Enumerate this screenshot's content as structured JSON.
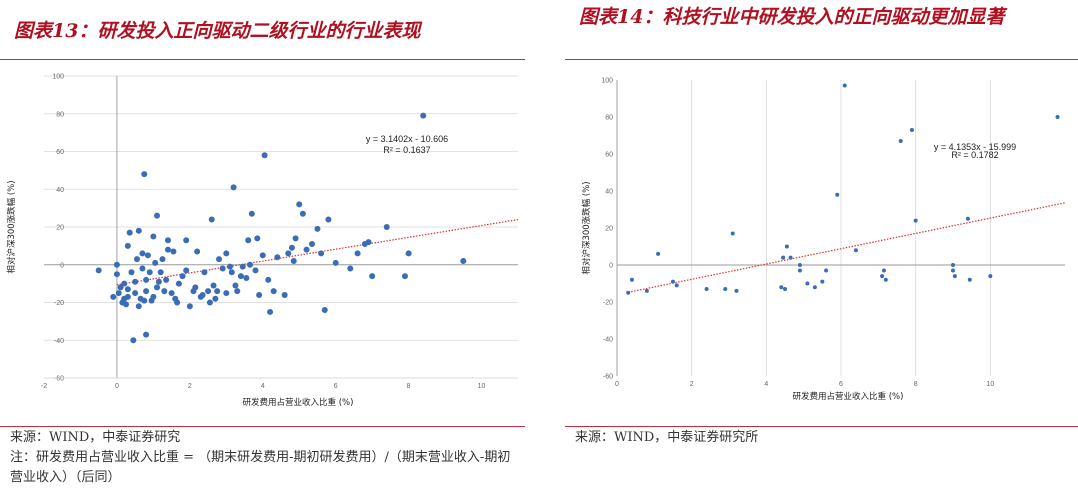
{
  "left": {
    "title": "图表13：研发投入正向驱动二级行业的行业表现",
    "source": "来源：WIND，中泰证券研究",
    "note": "注：研发费用占营业收入比重 = （期末研发费用-期初研发费用）/（期末营业收入-期初营业收入）（后同）"
  },
  "right": {
    "title": "图表14：科技行业中研发投入的正向驱动更加显著",
    "source": "来源：WIND，中泰证券研究所"
  },
  "chart_data": [
    {
      "type": "scatter",
      "xlabel": "研发费用占营业收入比重 (%)",
      "ylabel": "相对沪深300涨跌幅 (%)",
      "xlim": [
        -2,
        11
      ],
      "ylim": [
        -60,
        100
      ],
      "x_ticks": [
        "-2",
        "0",
        "2",
        "4",
        "6",
        "8",
        "10"
      ],
      "y_ticks": [
        "-60",
        "-40",
        "-20",
        "0",
        "20",
        "40",
        "60",
        "80",
        "100"
      ],
      "equation": "y = 3.1402x - 10.606",
      "r2": "R² = 0.1637",
      "trend": {
        "slope": 3.1402,
        "intercept": -10.606
      },
      "color": "#3a6db5",
      "trend_color": "#e03030",
      "points": [
        [
          -0.5,
          -3
        ],
        [
          -0.1,
          -17
        ],
        [
          0.0,
          -5
        ],
        [
          0.0,
          0
        ],
        [
          0.05,
          -15
        ],
        [
          0.1,
          -12
        ],
        [
          0.15,
          -20
        ],
        [
          0.2,
          -18
        ],
        [
          0.2,
          -10
        ],
        [
          0.25,
          -21
        ],
        [
          0.3,
          -13
        ],
        [
          0.3,
          -17
        ],
        [
          0.3,
          10
        ],
        [
          0.35,
          17
        ],
        [
          0.4,
          -4
        ],
        [
          0.45,
          -40
        ],
        [
          0.5,
          -9
        ],
        [
          0.5,
          -15
        ],
        [
          0.55,
          3
        ],
        [
          0.6,
          -22
        ],
        [
          0.6,
          18
        ],
        [
          0.65,
          -18
        ],
        [
          0.7,
          -2
        ],
        [
          0.7,
          6
        ],
        [
          0.75,
          -19
        ],
        [
          0.75,
          48
        ],
        [
          0.8,
          -37
        ],
        [
          0.8,
          -14
        ],
        [
          0.8,
          -8
        ],
        [
          0.85,
          5
        ],
        [
          0.9,
          -4
        ],
        [
          0.95,
          -19
        ],
        [
          1.0,
          -17
        ],
        [
          1.0,
          15
        ],
        [
          1.05,
          1
        ],
        [
          1.1,
          -12
        ],
        [
          1.1,
          26
        ],
        [
          1.15,
          -9
        ],
        [
          1.2,
          -4
        ],
        [
          1.25,
          3
        ],
        [
          1.3,
          -14
        ],
        [
          1.35,
          -8
        ],
        [
          1.4,
          8
        ],
        [
          1.4,
          13
        ],
        [
          1.5,
          -15
        ],
        [
          1.55,
          7
        ],
        [
          1.6,
          -18
        ],
        [
          1.65,
          -20
        ],
        [
          1.7,
          -10
        ],
        [
          1.8,
          -6
        ],
        [
          1.9,
          -3
        ],
        [
          1.9,
          13
        ],
        [
          2.0,
          -22
        ],
        [
          2.1,
          -14
        ],
        [
          2.15,
          -12
        ],
        [
          2.2,
          7
        ],
        [
          2.3,
          -17
        ],
        [
          2.35,
          -16
        ],
        [
          2.4,
          -4
        ],
        [
          2.5,
          -14
        ],
        [
          2.55,
          -20
        ],
        [
          2.6,
          24
        ],
        [
          2.65,
          -11
        ],
        [
          2.7,
          -18
        ],
        [
          2.75,
          -14
        ],
        [
          2.8,
          3
        ],
        [
          2.9,
          -2
        ],
        [
          3.0,
          -15
        ],
        [
          3.0,
          6
        ],
        [
          3.1,
          -1
        ],
        [
          3.15,
          -4
        ],
        [
          3.2,
          41
        ],
        [
          3.25,
          -11
        ],
        [
          3.3,
          -14
        ],
        [
          3.4,
          -6
        ],
        [
          3.45,
          -1
        ],
        [
          3.55,
          -7
        ],
        [
          3.6,
          13
        ],
        [
          3.65,
          0
        ],
        [
          3.7,
          27
        ],
        [
          3.8,
          -3
        ],
        [
          3.85,
          14
        ],
        [
          3.9,
          -16
        ],
        [
          4.0,
          5
        ],
        [
          4.05,
          58
        ],
        [
          4.15,
          -8
        ],
        [
          4.2,
          -25
        ],
        [
          4.3,
          -14
        ],
        [
          4.4,
          4
        ],
        [
          4.6,
          -16
        ],
        [
          4.7,
          6
        ],
        [
          4.8,
          9
        ],
        [
          4.85,
          2
        ],
        [
          4.9,
          14
        ],
        [
          5.0,
          32
        ],
        [
          5.1,
          27
        ],
        [
          5.2,
          8
        ],
        [
          5.35,
          11
        ],
        [
          5.5,
          19
        ],
        [
          5.6,
          6
        ],
        [
          5.7,
          -24
        ],
        [
          5.8,
          24
        ],
        [
          6.0,
          1
        ],
        [
          6.4,
          -2
        ],
        [
          6.6,
          6
        ],
        [
          6.8,
          11
        ],
        [
          6.9,
          12
        ],
        [
          7.0,
          -6
        ],
        [
          7.4,
          20
        ],
        [
          7.9,
          -6
        ],
        [
          8.0,
          6
        ],
        [
          8.4,
          79
        ],
        [
          9.5,
          2
        ]
      ]
    },
    {
      "type": "scatter",
      "xlabel": "研发费用占营业收入比重 (%)",
      "ylabel": "相对沪深300涨跌幅 (%)",
      "xlim": [
        0,
        12
      ],
      "ylim": [
        -60,
        100
      ],
      "x_ticks": [
        "0",
        "2",
        "4",
        "6",
        "8",
        "10"
      ],
      "y_ticks": [
        "-60",
        "-40",
        "-20",
        "0",
        "20",
        "40",
        "60",
        "80",
        "100"
      ],
      "equation": "y = 4.1353x - 15.999",
      "r2": "R² = 0.1782",
      "trend": {
        "slope": 4.1353,
        "intercept": -15.999
      },
      "color": "#3a6db5",
      "trend_color": "#e03030",
      "points": [
        [
          0.3,
          -15
        ],
        [
          0.4,
          -8
        ],
        [
          0.8,
          -14
        ],
        [
          1.1,
          6
        ],
        [
          1.5,
          -9
        ],
        [
          1.6,
          -11
        ],
        [
          2.4,
          -13
        ],
        [
          2.9,
          -13
        ],
        [
          3.1,
          17
        ],
        [
          3.2,
          -14
        ],
        [
          4.4,
          -12
        ],
        [
          4.45,
          4
        ],
        [
          4.5,
          -13
        ],
        [
          4.55,
          10
        ],
        [
          4.65,
          4
        ],
        [
          4.9,
          0
        ],
        [
          4.9,
          -3
        ],
        [
          5.1,
          -10
        ],
        [
          5.3,
          -12
        ],
        [
          5.5,
          -9
        ],
        [
          5.6,
          -3
        ],
        [
          5.9,
          38
        ],
        [
          6.1,
          97
        ],
        [
          6.4,
          8
        ],
        [
          7.1,
          -6
        ],
        [
          7.15,
          -3
        ],
        [
          7.2,
          -8
        ],
        [
          7.6,
          67
        ],
        [
          7.9,
          73
        ],
        [
          8.0,
          24
        ],
        [
          9.0,
          0
        ],
        [
          9.0,
          -3
        ],
        [
          9.05,
          -6
        ],
        [
          9.4,
          25
        ],
        [
          9.45,
          -8
        ],
        [
          10.0,
          -6
        ],
        [
          11.8,
          80
        ]
      ]
    }
  ]
}
